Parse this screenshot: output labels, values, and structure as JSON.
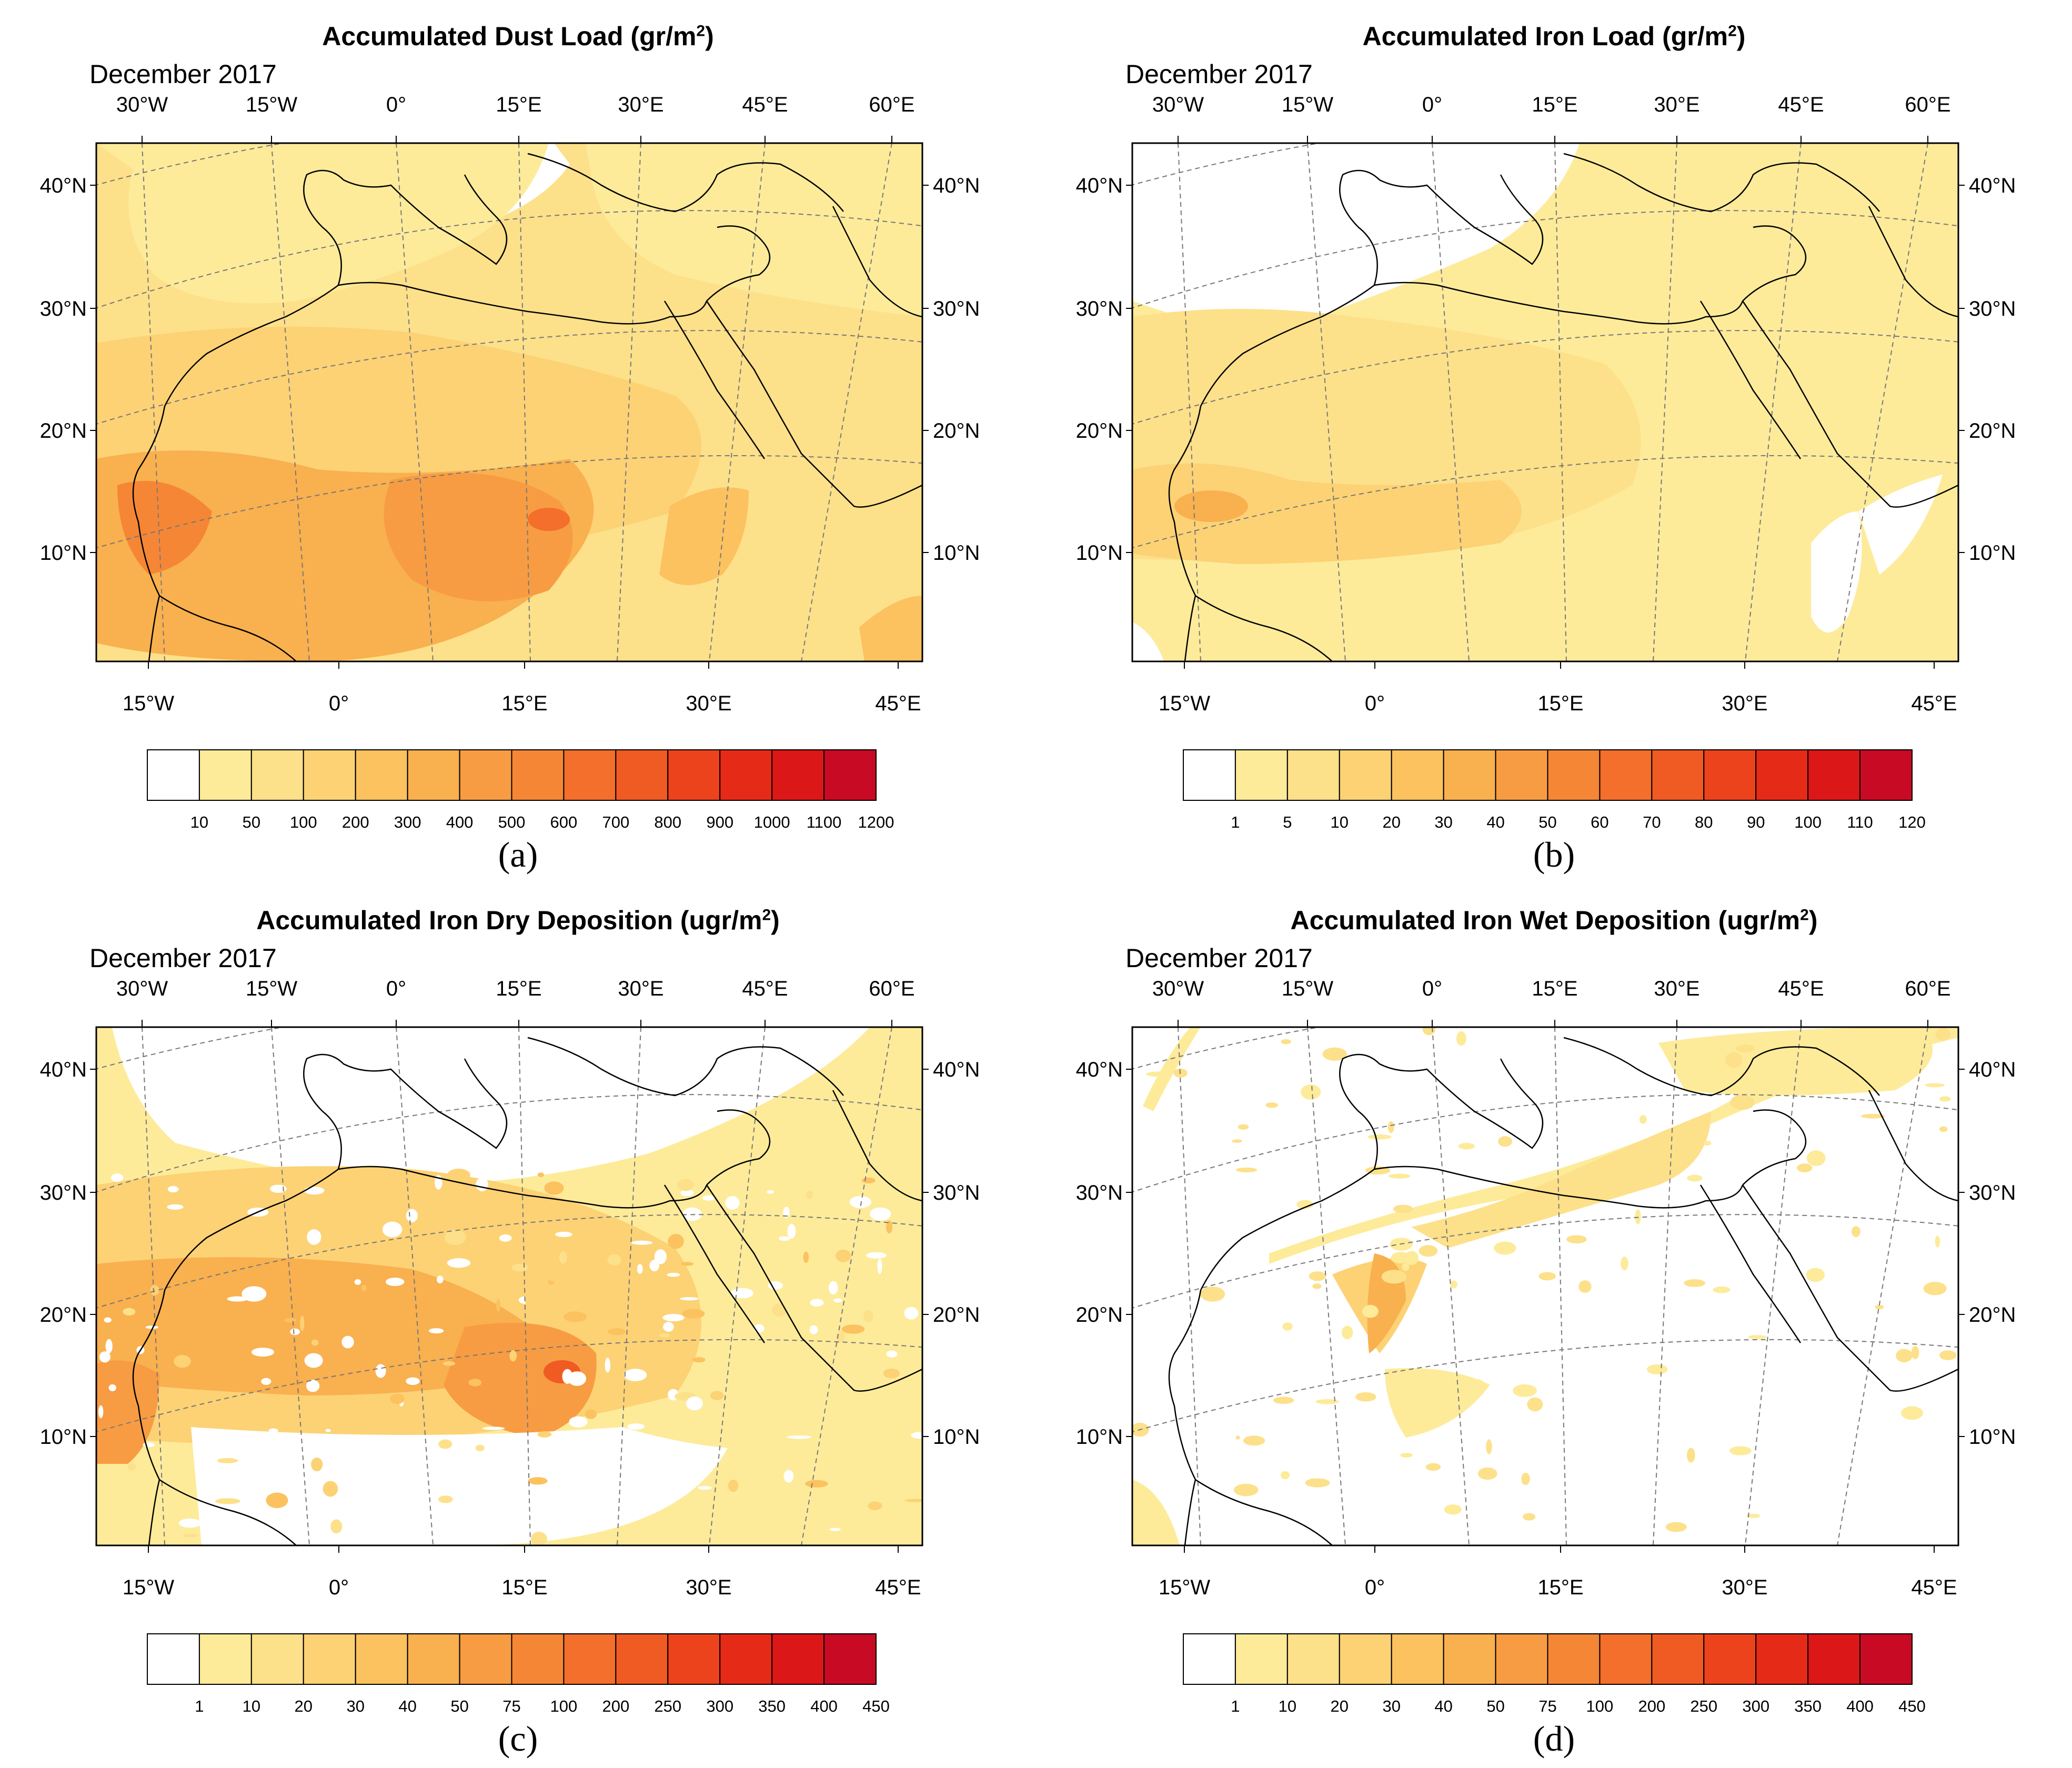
{
  "colors": {
    "scale": [
      "#ffffff",
      "#fdeb9a",
      "#fde08a",
      "#fcd275",
      "#fbc25f",
      "#f9b04e",
      "#f79c42",
      "#f58636",
      "#f36f2b",
      "#f05a23",
      "#ec431c",
      "#e62a18",
      "#dc1718",
      "#c80a24"
    ],
    "frame": "#000000",
    "grid": "#777777",
    "coast": "#000000"
  },
  "panels": [
    {
      "id": "a",
      "title_text": "Accumulated Dust Load (gr/m",
      "title_sup": "2",
      "title_close": ")",
      "date": "December 2017",
      "top_lon": [
        "30°W",
        "15°W",
        "0°",
        "15°E",
        "30°E",
        "45°E",
        "60°E"
      ],
      "bottom_lon": [
        "15°W",
        "0°",
        "15°E",
        "30°E",
        "45°E"
      ],
      "lat_left": [
        "40°N",
        "30°N",
        "20°N",
        "10°N"
      ],
      "lat_right": [
        "40°N",
        "30°N",
        "20°N",
        "10°N"
      ],
      "colorbar_labels": [
        "10",
        "50",
        "100",
        "200",
        "300",
        "400",
        "500",
        "600",
        "700",
        "800",
        "900",
        "1000",
        "1100",
        "1200"
      ],
      "label": "(a)"
    },
    {
      "id": "b",
      "title_text": "Accumulated Iron Load (gr/m",
      "title_sup": "2",
      "title_close": ")",
      "date": "December 2017",
      "top_lon": [
        "30°W",
        "15°W",
        "0°",
        "15°E",
        "30°E",
        "45°E",
        "60°E"
      ],
      "bottom_lon": [
        "15°W",
        "0°",
        "15°E",
        "30°E",
        "45°E"
      ],
      "lat_left": [
        "40°N",
        "30°N",
        "20°N",
        "10°N"
      ],
      "lat_right": [
        "40°N",
        "30°N",
        "20°N",
        "10°N"
      ],
      "colorbar_labels": [
        "1",
        "5",
        "10",
        "20",
        "30",
        "40",
        "50",
        "60",
        "70",
        "80",
        "90",
        "100",
        "110",
        "120"
      ],
      "label": "(b)"
    },
    {
      "id": "c",
      "title_text": "Accumulated Iron Dry Deposition (ugr/m",
      "title_sup": "2",
      "title_close": ")",
      "date": "December 2017",
      "top_lon": [
        "30°W",
        "15°W",
        "0°",
        "15°E",
        "30°E",
        "45°E",
        "60°E"
      ],
      "bottom_lon": [
        "15°W",
        "0°",
        "15°E",
        "30°E",
        "45°E"
      ],
      "lat_left": [
        "40°N",
        "30°N",
        "20°N",
        "10°N"
      ],
      "lat_right": [
        "40°N",
        "30°N",
        "20°N",
        "10°N"
      ],
      "colorbar_labels": [
        "1",
        "10",
        "20",
        "30",
        "40",
        "50",
        "75",
        "100",
        "200",
        "250",
        "300",
        "350",
        "400",
        "450"
      ],
      "label": "(c)"
    },
    {
      "id": "d",
      "title_text": "Accumulated Iron Wet Deposition (ugr/m",
      "title_sup": "2",
      "title_close": ")",
      "date": "December 2017",
      "top_lon": [
        "30°W",
        "15°W",
        "0°",
        "15°E",
        "30°E",
        "45°E",
        "60°E"
      ],
      "bottom_lon": [
        "15°W",
        "0°",
        "15°E",
        "30°E",
        "45°E"
      ],
      "lat_left": [
        "40°N",
        "30°N",
        "20°N",
        "10°N"
      ],
      "lat_right": [
        "40°N",
        "30°N",
        "20°N",
        "10°N"
      ],
      "colorbar_labels": [
        "1",
        "10",
        "20",
        "30",
        "40",
        "50",
        "75",
        "100",
        "200",
        "250",
        "300",
        "350",
        "400",
        "450"
      ],
      "label": "(d)"
    }
  ]
}
